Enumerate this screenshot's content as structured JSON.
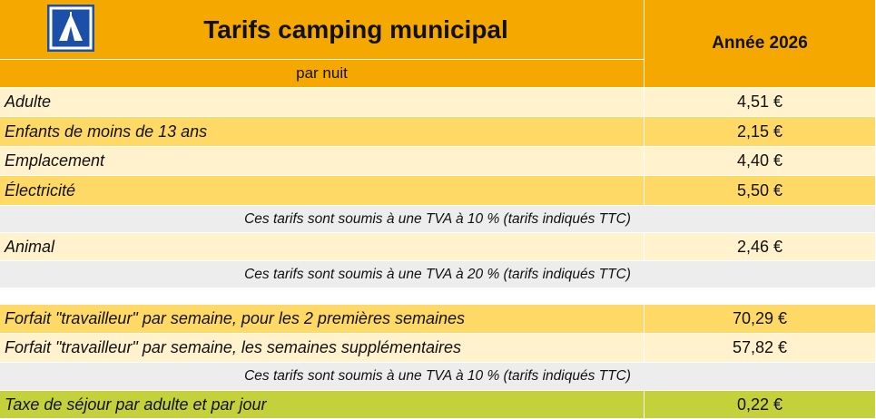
{
  "header": {
    "title": "Tarifs camping municipal",
    "subtitle": "par nuit",
    "year": "Année 2026"
  },
  "rows": [
    {
      "label": "Adulte",
      "price": "4,51 €"
    },
    {
      "label": "Enfants de moins de 13 ans",
      "price": "2,15 €"
    },
    {
      "label": "Emplacement",
      "price": "4,40 €"
    },
    {
      "label": "Électricité",
      "price": "5,50 €"
    },
    {
      "note": "Ces tarifs sont soumis à une TVA à 10 % (tarifs indiqués TTC)"
    },
    {
      "label": "Animal",
      "price": "2,46 €"
    },
    {
      "note": "Ces tarifs sont soumis à une TVA à 20 % (tarifs indiqués TTC)"
    },
    {
      "label": "Forfait \"travailleur\" par semaine, pour les 2 premières semaines",
      "price": "70,29 €"
    },
    {
      "label": "Forfait \"travailleur\" par semaine, les semaines supplémentaires",
      "price": "57,82 €"
    },
    {
      "note": "Ces tarifs sont soumis à une TVA à 10 % (tarifs indiqués TTC)"
    },
    {
      "label": "Taxe de séjour par adulte et par jour",
      "price": "0,22 €"
    }
  ]
}
